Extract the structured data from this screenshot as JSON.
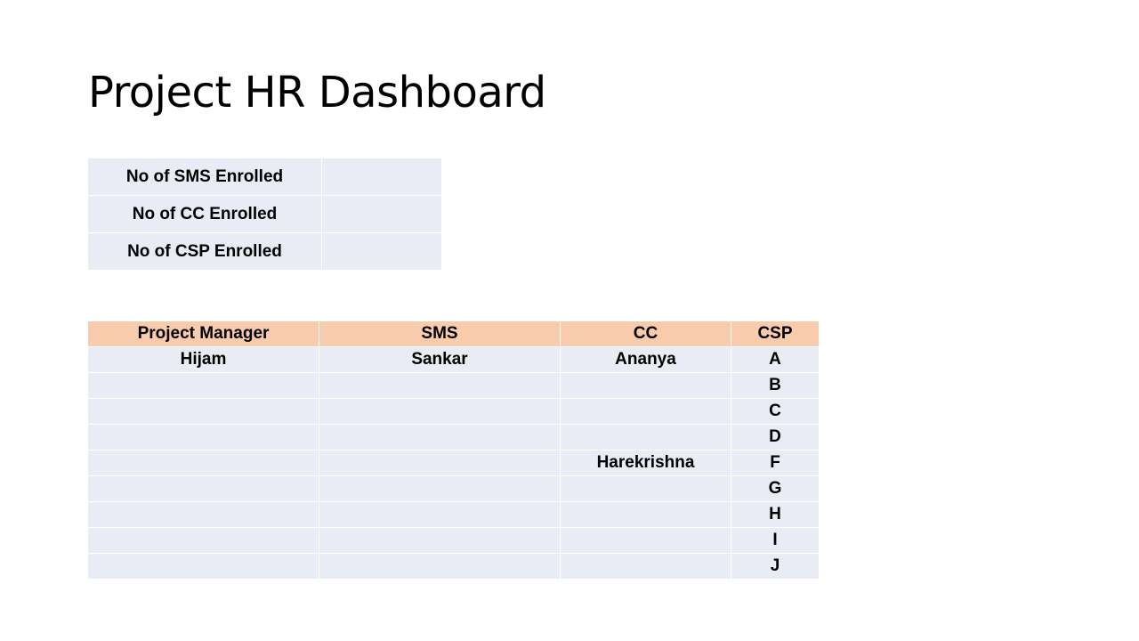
{
  "title": "Project HR Dashboard",
  "summary": {
    "rows": [
      {
        "label": "No of SMS Enrolled",
        "value": ""
      },
      {
        "label": "No of CC Enrolled",
        "value": ""
      },
      {
        "label": "No of CSP Enrolled",
        "value": ""
      }
    ]
  },
  "hr_table": {
    "headers": {
      "pm": "Project Manager",
      "sms": "SMS",
      "cc": "CC",
      "csp": "CSP"
    },
    "rows": [
      {
        "pm": "Hijam",
        "sms": "Sankar",
        "cc": "Ananya",
        "csp": "A"
      },
      {
        "pm": "",
        "sms": "",
        "cc": "",
        "csp": "B"
      },
      {
        "pm": "",
        "sms": "",
        "cc": "",
        "csp": "C"
      },
      {
        "pm": "",
        "sms": "",
        "cc": "",
        "csp": "D"
      },
      {
        "pm": "",
        "sms": "",
        "cc": "Harekrishna",
        "csp": "F"
      },
      {
        "pm": "",
        "sms": "",
        "cc": "",
        "csp": "G"
      },
      {
        "pm": "",
        "sms": "",
        "cc": "",
        "csp": "H"
      },
      {
        "pm": "",
        "sms": "",
        "cc": "",
        "csp": "I"
      },
      {
        "pm": "",
        "sms": "",
        "cc": "",
        "csp": "J"
      }
    ]
  }
}
